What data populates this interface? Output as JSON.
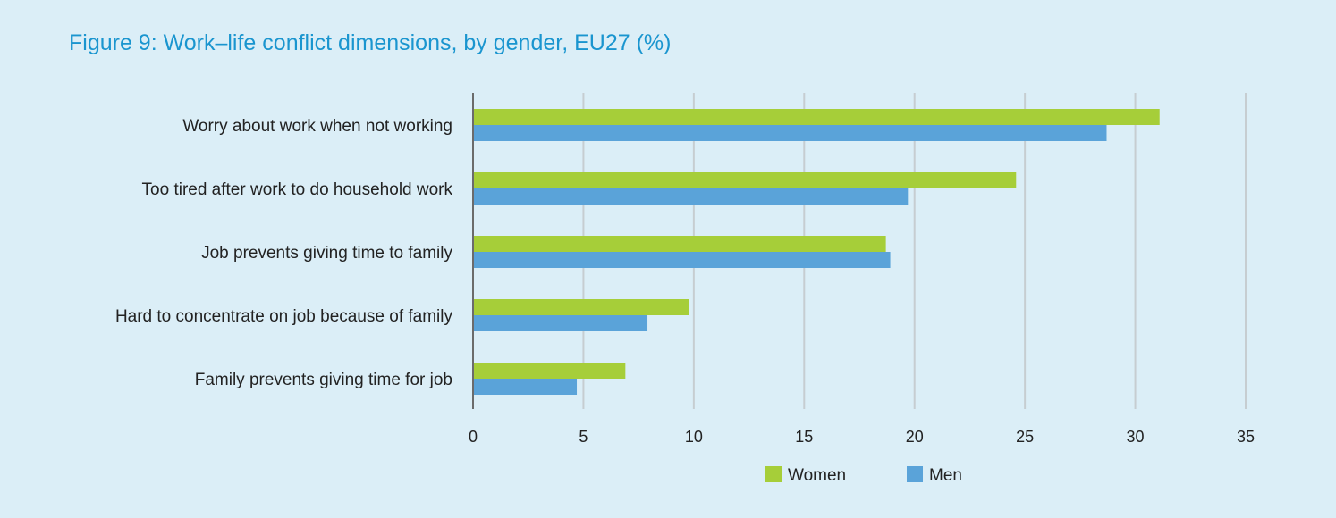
{
  "title": "Figure 9: Work–life conflict dimensions, by gender, EU27 (%)",
  "colors": {
    "women": "#a6ce39",
    "men": "#5aa3d9",
    "grid": "#c6cdd1",
    "axis": "#6b6b6b",
    "background": "#dbeef7"
  },
  "chart_data": {
    "type": "bar",
    "orientation": "horizontal",
    "title": "Figure 9: Work–life conflict dimensions, by gender, EU27 (%)",
    "categories": [
      "Worry about work when not working",
      "Too tired after work to do household work",
      "Job prevents giving time to family",
      "Hard to concentrate on job because of family",
      "Family prevents giving time for job"
    ],
    "series": [
      {
        "name": "Women",
        "values": [
          31.1,
          24.6,
          18.7,
          9.8,
          6.9
        ]
      },
      {
        "name": "Men",
        "values": [
          28.7,
          19.7,
          18.9,
          7.9,
          4.7
        ]
      }
    ],
    "xlim": [
      0,
      35
    ],
    "xticks": [
      "0",
      "5",
      "10",
      "15",
      "20",
      "25",
      "30",
      "35"
    ],
    "grid": true,
    "legend_position": "bottom-center",
    "xlabel": "",
    "ylabel": ""
  }
}
